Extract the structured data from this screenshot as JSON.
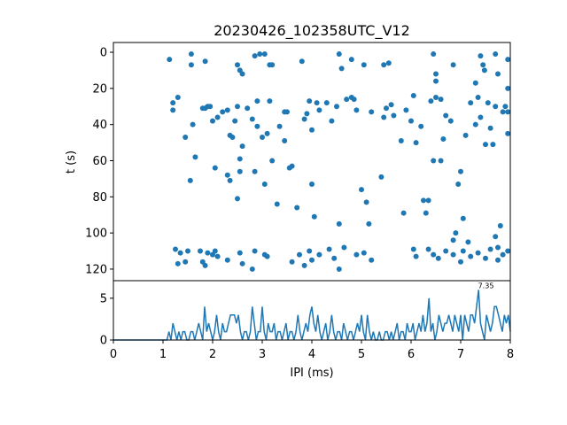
{
  "chart_data": [
    {
      "type": "scatter",
      "title": "20230426_102358UTC_V12",
      "xlabel": "",
      "ylabel": "t (s)",
      "xlim": [
        0,
        8
      ],
      "ylim": [
        126.4,
        -5.4
      ],
      "y_inverted": true,
      "yticks": [
        "0",
        "20",
        "40",
        "60",
        "80",
        "100",
        "120"
      ],
      "color": "#1f77b4",
      "points": [
        [
          1.13,
          4
        ],
        [
          1.57,
          1
        ],
        [
          1.57,
          7
        ],
        [
          1.85,
          5
        ],
        [
          2.5,
          7
        ],
        [
          2.55,
          10
        ],
        [
          2.6,
          12
        ],
        [
          2.85,
          2
        ],
        [
          2.95,
          1
        ],
        [
          3.05,
          1
        ],
        [
          3.15,
          7
        ],
        [
          3.2,
          7
        ],
        [
          3.8,
          5
        ],
        [
          4.55,
          1
        ],
        [
          4.6,
          9
        ],
        [
          4.8,
          4
        ],
        [
          5.05,
          7
        ],
        [
          5.45,
          7
        ],
        [
          5.55,
          6
        ],
        [
          6.45,
          1
        ],
        [
          6.5,
          16
        ],
        [
          6.5,
          12
        ],
        [
          6.85,
          7
        ],
        [
          7.4,
          2
        ],
        [
          7.45,
          7
        ],
        [
          7.48,
          10
        ],
        [
          7.7,
          1
        ],
        [
          7.75,
          12
        ],
        [
          7.95,
          4
        ],
        [
          7.3,
          17
        ],
        [
          7.95,
          20
        ],
        [
          1.2,
          28
        ],
        [
          1.2,
          32
        ],
        [
          1.3,
          25
        ],
        [
          1.45,
          47
        ],
        [
          1.6,
          40
        ],
        [
          1.65,
          58
        ],
        [
          1.55,
          71
        ],
        [
          1.8,
          31
        ],
        [
          1.85,
          31
        ],
        [
          1.9,
          30
        ],
        [
          1.95,
          30
        ],
        [
          2.0,
          38
        ],
        [
          2.1,
          36
        ],
        [
          2.05,
          64
        ],
        [
          2.2,
          33
        ],
        [
          2.3,
          32
        ],
        [
          2.35,
          46
        ],
        [
          2.3,
          68
        ],
        [
          2.35,
          71
        ],
        [
          2.4,
          47
        ],
        [
          2.45,
          38
        ],
        [
          2.5,
          30
        ],
        [
          2.55,
          66
        ],
        [
          2.5,
          81
        ],
        [
          2.55,
          59
        ],
        [
          2.6,
          52
        ],
        [
          2.7,
          31
        ],
        [
          2.8,
          37
        ],
        [
          2.85,
          66
        ],
        [
          2.9,
          27
        ],
        [
          2.9,
          41
        ],
        [
          3.0,
          47
        ],
        [
          3.05,
          73
        ],
        [
          3.1,
          45
        ],
        [
          3.15,
          27
        ],
        [
          3.2,
          60
        ],
        [
          3.3,
          84
        ],
        [
          3.35,
          41
        ],
        [
          3.45,
          49
        ],
        [
          3.45,
          33
        ],
        [
          3.5,
          33
        ],
        [
          3.55,
          64
        ],
        [
          3.6,
          63
        ],
        [
          3.7,
          86
        ],
        [
          3.85,
          37
        ],
        [
          3.9,
          34
        ],
        [
          3.95,
          27
        ],
        [
          4.0,
          43
        ],
        [
          4.0,
          73
        ],
        [
          4.05,
          91
        ],
        [
          4.1,
          28
        ],
        [
          4.15,
          32
        ],
        [
          4.3,
          28
        ],
        [
          4.4,
          38
        ],
        [
          4.5,
          30
        ],
        [
          4.55,
          95
        ],
        [
          4.7,
          26
        ],
        [
          4.8,
          25
        ],
        [
          4.85,
          26
        ],
        [
          4.9,
          32
        ],
        [
          5.0,
          76
        ],
        [
          5.1,
          83
        ],
        [
          5.15,
          95
        ],
        [
          5.2,
          33
        ],
        [
          5.4,
          69
        ],
        [
          5.45,
          36
        ],
        [
          5.5,
          31
        ],
        [
          5.6,
          29
        ],
        [
          5.65,
          35
        ],
        [
          5.8,
          49
        ],
        [
          5.85,
          89
        ],
        [
          5.9,
          32
        ],
        [
          6.0,
          38
        ],
        [
          6.05,
          24
        ],
        [
          6.1,
          50
        ],
        [
          6.2,
          41
        ],
        [
          6.25,
          82
        ],
        [
          6.3,
          89
        ],
        [
          6.35,
          82
        ],
        [
          6.4,
          27
        ],
        [
          6.45,
          60
        ],
        [
          6.5,
          25
        ],
        [
          6.6,
          26
        ],
        [
          6.6,
          60
        ],
        [
          6.65,
          48
        ],
        [
          6.7,
          35
        ],
        [
          6.8,
          38
        ],
        [
          6.85,
          104
        ],
        [
          6.9,
          100
        ],
        [
          6.95,
          73
        ],
        [
          7.0,
          66
        ],
        [
          7.05,
          92
        ],
        [
          7.1,
          46
        ],
        [
          7.15,
          105
        ],
        [
          7.2,
          28
        ],
        [
          7.3,
          40
        ],
        [
          7.35,
          25
        ],
        [
          7.4,
          36
        ],
        [
          7.5,
          51
        ],
        [
          7.55,
          28
        ],
        [
          7.6,
          42
        ],
        [
          7.65,
          51
        ],
        [
          7.7,
          30
        ],
        [
          7.7,
          102
        ],
        [
          7.75,
          108
        ],
        [
          7.8,
          96
        ],
        [
          7.85,
          33
        ],
        [
          7.9,
          30
        ],
        [
          7.95,
          45
        ],
        [
          7.95,
          33
        ],
        [
          1.25,
          109
        ],
        [
          1.3,
          117
        ],
        [
          1.35,
          111
        ],
        [
          1.45,
          116
        ],
        [
          1.5,
          110
        ],
        [
          1.75,
          110
        ],
        [
          1.8,
          116
        ],
        [
          1.85,
          118
        ],
        [
          1.9,
          111
        ],
        [
          2.0,
          112
        ],
        [
          2.05,
          110
        ],
        [
          2.1,
          113
        ],
        [
          2.3,
          115
        ],
        [
          2.55,
          111
        ],
        [
          2.6,
          117
        ],
        [
          2.8,
          120
        ],
        [
          2.85,
          110
        ],
        [
          3.05,
          112
        ],
        [
          3.1,
          113
        ],
        [
          3.6,
          116
        ],
        [
          3.75,
          112
        ],
        [
          3.85,
          118
        ],
        [
          3.95,
          110
        ],
        [
          4.0,
          115
        ],
        [
          4.15,
          112
        ],
        [
          4.35,
          109
        ],
        [
          4.45,
          114
        ],
        [
          4.55,
          120
        ],
        [
          4.65,
          108
        ],
        [
          4.9,
          112
        ],
        [
          5.05,
          111
        ],
        [
          5.2,
          115
        ],
        [
          6.05,
          109
        ],
        [
          6.1,
          113
        ],
        [
          6.35,
          109
        ],
        [
          6.45,
          112
        ],
        [
          6.55,
          114
        ],
        [
          6.7,
          110
        ],
        [
          6.85,
          112
        ],
        [
          7.0,
          116
        ],
        [
          7.05,
          110
        ],
        [
          7.2,
          113
        ],
        [
          7.35,
          111
        ],
        [
          7.5,
          114
        ],
        [
          7.6,
          109
        ],
        [
          7.75,
          115
        ],
        [
          7.85,
          112
        ],
        [
          7.95,
          110
        ]
      ]
    },
    {
      "type": "line",
      "xlabel": "IPI (ms)",
      "ylabel": "",
      "xlim": [
        0,
        8
      ],
      "ylim": [
        0,
        7.1
      ],
      "xticks": [
        "0",
        "1",
        "2",
        "3",
        "4",
        "5",
        "6",
        "7",
        "8"
      ],
      "yticks": [
        "0",
        "5"
      ],
      "color": "#1f77b4",
      "x_step": 0.04,
      "annotation": {
        "text": "7.35",
        "x": 7.35,
        "y": 6
      },
      "values": [
        0,
        0,
        0,
        0,
        0,
        0,
        0,
        0,
        0,
        0,
        0,
        0,
        0,
        0,
        0,
        0,
        0,
        0,
        0,
        0,
        0,
        0,
        0,
        0,
        0,
        0,
        0,
        0,
        1,
        0,
        2,
        1,
        0,
        1,
        0,
        1,
        1,
        0,
        0,
        1,
        1,
        0,
        1,
        2,
        1,
        0,
        4,
        1,
        2,
        1,
        0,
        1,
        3,
        1,
        0,
        2,
        1,
        1,
        2,
        3,
        3,
        3,
        2,
        3,
        1,
        0,
        1,
        1,
        0,
        1,
        4,
        2,
        0,
        1,
        1,
        4,
        1,
        0,
        2,
        1,
        1,
        2,
        0,
        1,
        1,
        0,
        1,
        2,
        0,
        1,
        1,
        0,
        1,
        3,
        1,
        0,
        1,
        2,
        1,
        3,
        4,
        2,
        1,
        3,
        1,
        0,
        1,
        2,
        0,
        1,
        3,
        1,
        0,
        1,
        1,
        0,
        2,
        1,
        0,
        1,
        1,
        0,
        1,
        2,
        1,
        3,
        1,
        0,
        3,
        1,
        0,
        1,
        0,
        0,
        1,
        0,
        0,
        1,
        1,
        0,
        1,
        0,
        1,
        2,
        0,
        1,
        1,
        0,
        2,
        1,
        1,
        2,
        0,
        1,
        2,
        1,
        3,
        1,
        2,
        5,
        1,
        2,
        0,
        1,
        3,
        2,
        1,
        2,
        2,
        3,
        2,
        1,
        3,
        2,
        1,
        3,
        0,
        3,
        2,
        1,
        3,
        3,
        2,
        4,
        6,
        2,
        1,
        0,
        3,
        2,
        1,
        2,
        4,
        4,
        3,
        2,
        1,
        3,
        2,
        3,
        1
      ]
    }
  ]
}
